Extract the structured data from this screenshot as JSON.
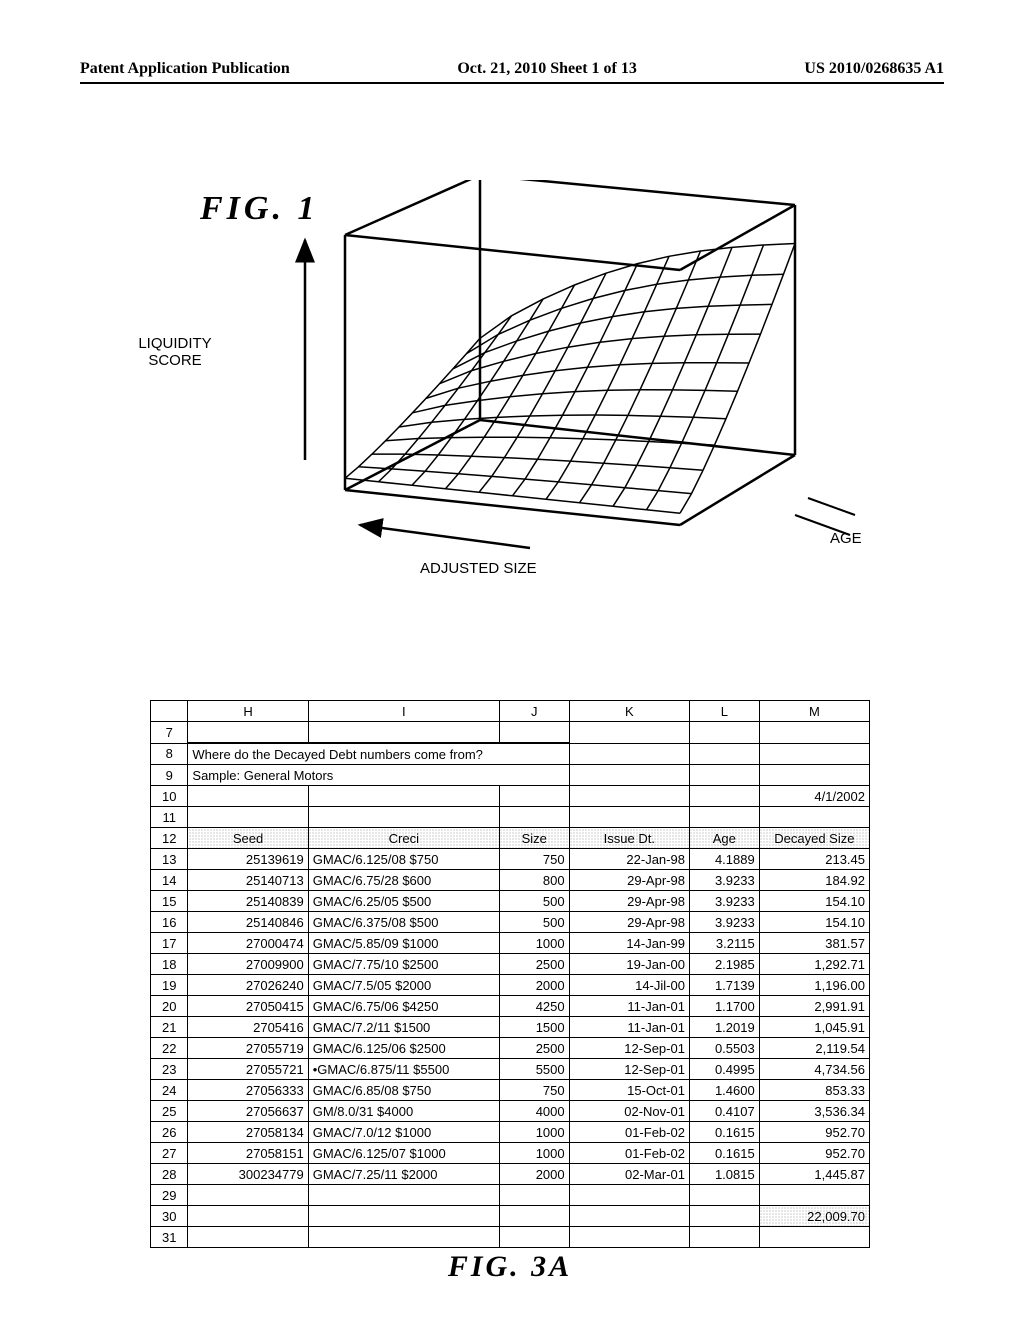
{
  "header": {
    "left": "Patent Application Publication",
    "center": "Oct. 21, 2010  Sheet 1 of 13",
    "right": "US 2010/0268635 A1"
  },
  "fig1": {
    "label": "FIG.  1",
    "ylabel_line1": "LIQUIDITY",
    "ylabel_line2": "SCORE",
    "xlabel_bottom": "ADJUSTED SIZE",
    "xlabel_right": "AGE",
    "axes_color": "#000000",
    "surface_line_color": "#000000",
    "surface_line_width": 1.5,
    "axes_line_width": 2.5,
    "grid_u_count": 11,
    "grid_v_count": 11
  },
  "fig3a": {
    "label": "FIG.  3A",
    "column_letters": [
      "H",
      "I",
      "J",
      "K",
      "L",
      "M"
    ],
    "row_start": 7,
    "row_end": 31,
    "header_row_index": 12,
    "title_row": {
      "index": 8,
      "text": "Where do the Decayed Debt numbers come from?"
    },
    "subtitle_row": {
      "index": 9,
      "text": "Sample: General Motors"
    },
    "date_cell": {
      "row": 10,
      "col": "M",
      "text": "4/1/2002"
    },
    "columns": [
      {
        "key": "seed",
        "letter": "H",
        "header": "Seed",
        "align": "right"
      },
      {
        "key": "creci",
        "letter": "I",
        "header": "Creci",
        "align": "left"
      },
      {
        "key": "size",
        "letter": "J",
        "header": "Size",
        "align": "right"
      },
      {
        "key": "issue_dt",
        "letter": "K",
        "header": "Issue Dt.",
        "align": "right"
      },
      {
        "key": "age",
        "letter": "L",
        "header": "Age",
        "align": "right"
      },
      {
        "key": "decayed_size",
        "letter": "M",
        "header": "Decayed Size",
        "align": "right"
      }
    ],
    "data_rows": [
      {
        "n": 13,
        "seed": "25139619",
        "creci": "GMAC/6.125/08 $750",
        "size": "750",
        "issue_dt": "22-Jan-98",
        "age": "4.1889",
        "decayed_size": "213.45"
      },
      {
        "n": 14,
        "seed": "25140713",
        "creci": "GMAC/6.75/28 $600",
        "size": "800",
        "issue_dt": "29-Apr-98",
        "age": "3.9233",
        "decayed_size": "184.92"
      },
      {
        "n": 15,
        "seed": "25140839",
        "creci": "GMAC/6.25/05 $500",
        "size": "500",
        "issue_dt": "29-Apr-98",
        "age": "3.9233",
        "decayed_size": "154.10"
      },
      {
        "n": 16,
        "seed": "25140846",
        "creci": "GMAC/6.375/08 $500",
        "size": "500",
        "issue_dt": "29-Apr-98",
        "age": "3.9233",
        "decayed_size": "154.10"
      },
      {
        "n": 17,
        "seed": "27000474",
        "creci": "GMAC/5.85/09 $1000",
        "size": "1000",
        "issue_dt": "14-Jan-99",
        "age": "3.2115",
        "decayed_size": "381.57"
      },
      {
        "n": 18,
        "seed": "27009900",
        "creci": "GMAC/7.75/10 $2500",
        "size": "2500",
        "issue_dt": "19-Jan-00",
        "age": "2.1985",
        "decayed_size": "1,292.71"
      },
      {
        "n": 19,
        "seed": "27026240",
        "creci": "GMAC/7.5/05 $2000",
        "size": "2000",
        "issue_dt": "14-Jil-00",
        "age": "1.7139",
        "decayed_size": "1,196.00"
      },
      {
        "n": 20,
        "seed": "27050415",
        "creci": "GMAC/6.75/06 $4250",
        "size": "4250",
        "issue_dt": "11-Jan-01",
        "age": "1.1700",
        "decayed_size": "2,991.91"
      },
      {
        "n": 21,
        "seed": "2705416",
        "creci": "GMAC/7.2/11 $1500",
        "size": "1500",
        "issue_dt": "11-Jan-01",
        "age": "1.2019",
        "decayed_size": "1,045.91"
      },
      {
        "n": 22,
        "seed": "27055719",
        "creci": "GMAC/6.125/06 $2500",
        "size": "2500",
        "issue_dt": "12-Sep-01",
        "age": "0.5503",
        "decayed_size": "2,119.54"
      },
      {
        "n": 23,
        "seed": "27055721",
        "creci": "•GMAC/6.875/11 $5500",
        "size": "5500",
        "issue_dt": "12-Sep-01",
        "age": "0.4995",
        "decayed_size": "4,734.56"
      },
      {
        "n": 24,
        "seed": "27056333",
        "creci": "GMAC/6.85/08 $750",
        "size": "750",
        "issue_dt": "15-Oct-01",
        "age": "1.4600",
        "decayed_size": "853.33"
      },
      {
        "n": 25,
        "seed": "27056637",
        "creci": "GM/8.0/31 $4000",
        "size": "4000",
        "issue_dt": "02-Nov-01",
        "age": "0.4107",
        "decayed_size": "3,536.34"
      },
      {
        "n": 26,
        "seed": "27058134",
        "creci": "GMAC/7.0/12 $1000",
        "size": "1000",
        "issue_dt": "01-Feb-02",
        "age": "0.1615",
        "decayed_size": "952.70"
      },
      {
        "n": 27,
        "seed": "27058151",
        "creci": "GMAC/6.125/07 $1000",
        "size": "1000",
        "issue_dt": "01-Feb-02",
        "age": "0.1615",
        "decayed_size": "952.70"
      },
      {
        "n": 28,
        "seed": "300234779",
        "creci": "GMAC/7.25/11 $2000",
        "size": "2000",
        "issue_dt": "02-Mar-01",
        "age": "1.0815",
        "decayed_size": "1,445.87"
      }
    ],
    "total_cell": {
      "row": 30,
      "col": "M",
      "text": "22,009.70",
      "shaded": true
    },
    "header_shaded": true,
    "border_color": "#000000",
    "font_size_pt": 10
  }
}
